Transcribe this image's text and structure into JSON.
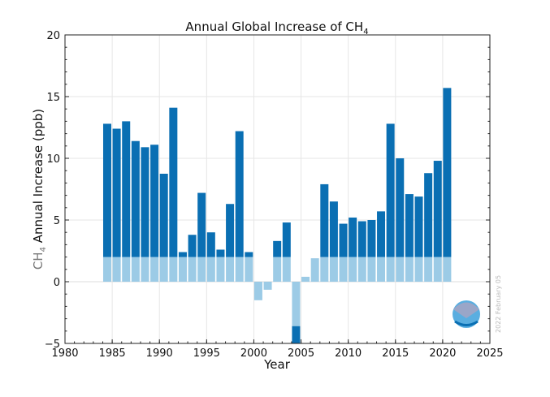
{
  "chart_data": {
    "type": "bar",
    "title": "Annual Global Increase of CH",
    "title_subscript": "4",
    "xlabel": "Year",
    "ylabel_prefix": "CH",
    "ylabel_subscript": "4",
    "ylabel": " Annual Increase (ppb)",
    "xlim": [
      1980,
      2025
    ],
    "ylim": [
      -5,
      20
    ],
    "xticks": [
      "1980",
      "1985",
      "1990",
      "1995",
      "2000",
      "2005",
      "2010",
      "2015",
      "2020",
      "2025"
    ],
    "yticks": [
      "−5",
      "0",
      "5",
      "10",
      "15",
      "20"
    ],
    "grid": true,
    "colors": {
      "dark": "#0a6fb3",
      "light": "#9ccbe6"
    },
    "x": [
      1984,
      1985,
      1986,
      1987,
      1988,
      1989,
      1990,
      1991,
      1992,
      1993,
      1994,
      1995,
      1996,
      1997,
      1998,
      1999,
      2000,
      2001,
      2002,
      2003,
      2004,
      2005,
      2006,
      2007,
      2008,
      2009,
      2010,
      2011,
      2012,
      2013,
      2014,
      2015,
      2016,
      2017,
      2018,
      2019,
      2020
    ],
    "values": [
      12.8,
      12.4,
      13.0,
      11.4,
      10.9,
      11.1,
      8.75,
      14.1,
      2.4,
      3.8,
      7.2,
      4.0,
      2.6,
      6.3,
      12.2,
      2.4,
      -1.5,
      -0.65,
      3.3,
      4.8,
      -5.0,
      0.4,
      1.9,
      7.9,
      6.5,
      4.7,
      5.2,
      4.9,
      5.0,
      5.7,
      12.8,
      10.0,
      7.1,
      6.9,
      8.8,
      9.8,
      15.7
    ],
    "date_stamp": "2022 February 05",
    "logo": "NOAA"
  }
}
